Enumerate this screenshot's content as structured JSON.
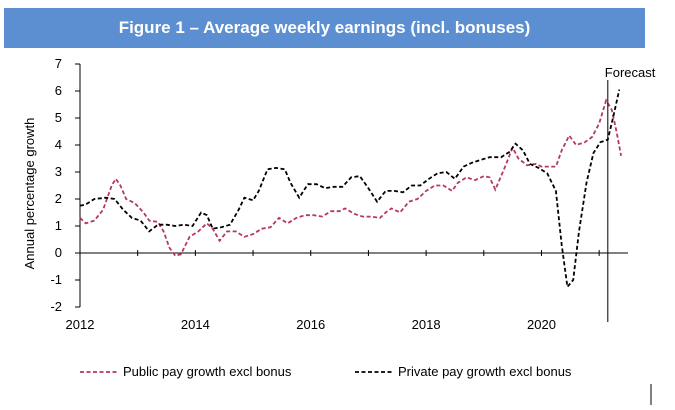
{
  "title": "Figure 1 – Average weekly earnings (incl. bonuses)",
  "chart_data": {
    "type": "line",
    "title": "Figure 1 – Average weekly earnings (incl. bonuses)",
    "ylabel": "Annual percentage growth",
    "xlabel": "",
    "xlim": [
      2012,
      2021.5
    ],
    "ylim": [
      -2,
      7
    ],
    "xticks": [
      "2012",
      "2014",
      "2016",
      "2018",
      "2020"
    ],
    "yticks": [
      "-2",
      "-1",
      "0",
      "1",
      "2",
      "3",
      "4",
      "5",
      "6",
      "7"
    ],
    "grid": false,
    "legend": "bottom",
    "annotation": {
      "text": "Forecast",
      "x": 2021.15
    },
    "colors": {
      "public": "#b5385e",
      "private": "#000000",
      "title_bg": "#5b8fd1"
    },
    "series": [
      {
        "name": "Public pay growth excl bonus",
        "color": "#b5385e",
        "points": [
          [
            2012.0,
            1.3
          ],
          [
            2012.1,
            1.1
          ],
          [
            2012.25,
            1.2
          ],
          [
            2012.4,
            1.6
          ],
          [
            2012.55,
            2.5
          ],
          [
            2012.62,
            2.75
          ],
          [
            2012.7,
            2.5
          ],
          [
            2012.8,
            2.0
          ],
          [
            2012.95,
            1.85
          ],
          [
            2013.1,
            1.5
          ],
          [
            2013.2,
            1.2
          ],
          [
            2013.35,
            1.15
          ],
          [
            2013.45,
            0.8
          ],
          [
            2013.55,
            0.2
          ],
          [
            2013.65,
            -0.1
          ],
          [
            2013.75,
            -0.05
          ],
          [
            2013.9,
            0.6
          ],
          [
            2014.05,
            0.8
          ],
          [
            2014.2,
            1.1
          ],
          [
            2014.3,
            0.9
          ],
          [
            2014.42,
            0.45
          ],
          [
            2014.55,
            0.8
          ],
          [
            2014.7,
            0.8
          ],
          [
            2014.85,
            0.6
          ],
          [
            2015.0,
            0.7
          ],
          [
            2015.15,
            0.9
          ],
          [
            2015.3,
            0.95
          ],
          [
            2015.45,
            1.3
          ],
          [
            2015.6,
            1.1
          ],
          [
            2015.75,
            1.3
          ],
          [
            2015.9,
            1.4
          ],
          [
            2016.05,
            1.4
          ],
          [
            2016.2,
            1.35
          ],
          [
            2016.35,
            1.55
          ],
          [
            2016.5,
            1.55
          ],
          [
            2016.6,
            1.65
          ],
          [
            2016.75,
            1.45
          ],
          [
            2016.9,
            1.35
          ],
          [
            2017.05,
            1.35
          ],
          [
            2017.2,
            1.3
          ],
          [
            2017.3,
            1.5
          ],
          [
            2017.4,
            1.65
          ],
          [
            2017.55,
            1.5
          ],
          [
            2017.7,
            1.9
          ],
          [
            2017.85,
            2.0
          ],
          [
            2018.0,
            2.3
          ],
          [
            2018.15,
            2.5
          ],
          [
            2018.3,
            2.5
          ],
          [
            2018.45,
            2.3
          ],
          [
            2018.55,
            2.6
          ],
          [
            2018.7,
            2.8
          ],
          [
            2018.85,
            2.7
          ],
          [
            2019.0,
            2.85
          ],
          [
            2019.1,
            2.8
          ],
          [
            2019.2,
            2.35
          ],
          [
            2019.35,
            3.1
          ],
          [
            2019.5,
            3.9
          ],
          [
            2019.6,
            3.5
          ],
          [
            2019.75,
            3.25
          ],
          [
            2019.9,
            3.3
          ],
          [
            2020.0,
            3.2
          ],
          [
            2020.15,
            3.2
          ],
          [
            2020.25,
            3.2
          ],
          [
            2020.35,
            3.8
          ],
          [
            2020.48,
            4.35
          ],
          [
            2020.6,
            4.0
          ],
          [
            2020.75,
            4.1
          ],
          [
            2020.88,
            4.3
          ],
          [
            2021.0,
            4.8
          ],
          [
            2021.12,
            5.65
          ],
          [
            2021.22,
            5.3
          ],
          [
            2021.3,
            4.5
          ],
          [
            2021.38,
            3.6
          ]
        ]
      },
      {
        "name": "Private pay growth excl bonus",
        "color": "#000000",
        "points": [
          [
            2012.0,
            1.75
          ],
          [
            2012.1,
            1.8
          ],
          [
            2012.25,
            2.0
          ],
          [
            2012.45,
            2.05
          ],
          [
            2012.6,
            2.0
          ],
          [
            2012.75,
            1.6
          ],
          [
            2012.9,
            1.3
          ],
          [
            2013.05,
            1.2
          ],
          [
            2013.2,
            0.8
          ],
          [
            2013.35,
            1.05
          ],
          [
            2013.5,
            1.05
          ],
          [
            2013.65,
            1.0
          ],
          [
            2013.8,
            1.05
          ],
          [
            2013.95,
            1.0
          ],
          [
            2014.1,
            1.5
          ],
          [
            2014.2,
            1.4
          ],
          [
            2014.3,
            0.9
          ],
          [
            2014.45,
            0.95
          ],
          [
            2014.6,
            1.05
          ],
          [
            2014.75,
            1.6
          ],
          [
            2014.85,
            2.05
          ],
          [
            2015.0,
            1.95
          ],
          [
            2015.1,
            2.3
          ],
          [
            2015.25,
            3.1
          ],
          [
            2015.4,
            3.15
          ],
          [
            2015.55,
            3.1
          ],
          [
            2015.65,
            2.6
          ],
          [
            2015.8,
            2.05
          ],
          [
            2015.95,
            2.55
          ],
          [
            2016.1,
            2.55
          ],
          [
            2016.25,
            2.4
          ],
          [
            2016.4,
            2.45
          ],
          [
            2016.55,
            2.45
          ],
          [
            2016.7,
            2.8
          ],
          [
            2016.85,
            2.85
          ],
          [
            2017.0,
            2.4
          ],
          [
            2017.15,
            1.9
          ],
          [
            2017.3,
            2.3
          ],
          [
            2017.45,
            2.3
          ],
          [
            2017.6,
            2.25
          ],
          [
            2017.75,
            2.5
          ],
          [
            2017.9,
            2.5
          ],
          [
            2018.05,
            2.75
          ],
          [
            2018.2,
            2.95
          ],
          [
            2018.35,
            3.0
          ],
          [
            2018.5,
            2.75
          ],
          [
            2018.65,
            3.2
          ],
          [
            2018.8,
            3.35
          ],
          [
            2018.95,
            3.45
          ],
          [
            2019.1,
            3.55
          ],
          [
            2019.3,
            3.55
          ],
          [
            2019.45,
            3.75
          ],
          [
            2019.55,
            4.05
          ],
          [
            2019.68,
            3.8
          ],
          [
            2019.8,
            3.3
          ],
          [
            2019.95,
            3.15
          ],
          [
            2020.1,
            2.95
          ],
          [
            2020.25,
            2.3
          ],
          [
            2020.35,
            0.3
          ],
          [
            2020.45,
            -1.25
          ],
          [
            2020.55,
            -1.0
          ],
          [
            2020.65,
            0.8
          ],
          [
            2020.78,
            2.6
          ],
          [
            2020.9,
            3.7
          ],
          [
            2021.02,
            4.1
          ],
          [
            2021.15,
            4.2
          ],
          [
            2021.25,
            5.1
          ],
          [
            2021.35,
            6.05
          ]
        ]
      }
    ]
  }
}
